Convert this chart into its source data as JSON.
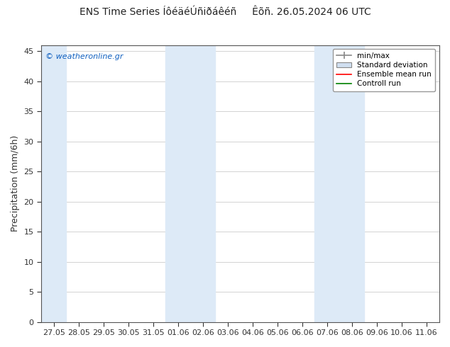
{
  "title": "ENS Time Series ÍôéäéÚñiðáêéñ     Êõñ. 26.05.2024 06 UTC",
  "ylabel": "Precipitation (mm/6h)",
  "xtick_labels": [
    "27.05",
    "28.05",
    "29.05",
    "30.05",
    "31.05",
    "01.06",
    "02.06",
    "03.06",
    "04.06",
    "05.06",
    "06.06",
    "07.06",
    "08.06",
    "09.06",
    "10.06",
    "11.06"
  ],
  "ylim": [
    0,
    46
  ],
  "yticks": [
    0,
    5,
    10,
    15,
    20,
    25,
    30,
    35,
    40,
    45
  ],
  "fig_bg_color": "#ffffff",
  "plot_bg_color": "#ffffff",
  "shaded_col_color": "#ddeaf7",
  "shaded_cols": [
    0,
    5,
    6,
    11,
    12
  ],
  "mean_color": "#ff0000",
  "control_color": "#008000",
  "watermark": "© weatheronline.gr",
  "watermark_color": "#1060c0",
  "legend_labels": [
    "min/max",
    "Standard deviation",
    "Ensemble mean run",
    "Controll run"
  ],
  "border_color": "#555555",
  "grid_color": "#cccccc",
  "tick_color": "#333333",
  "title_fontsize": 10,
  "ylabel_fontsize": 9,
  "tick_fontsize": 8
}
